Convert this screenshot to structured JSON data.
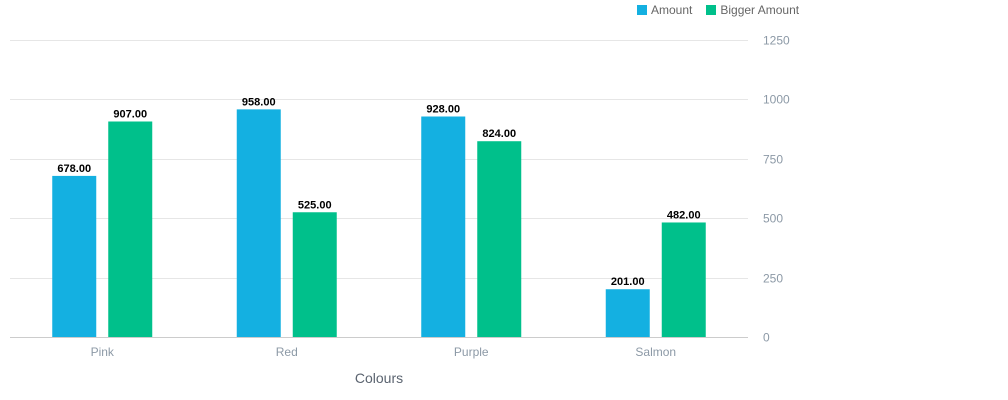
{
  "chart_data": {
    "type": "bar",
    "categories": [
      "Pink",
      "Red",
      "Purple",
      "Salmon"
    ],
    "series": [
      {
        "name": "Amount",
        "values": [
          678.0,
          958.0,
          928.0,
          201.0
        ],
        "color": "#14b0e1",
        "labels": [
          "678.00",
          "958.00",
          "928.00",
          "201.00"
        ]
      },
      {
        "name": "Bigger Amount",
        "values": [
          907.0,
          525.0,
          824.0,
          482.0
        ],
        "color": "#00c08b",
        "labels": [
          "907.00",
          "525.00",
          "824.00",
          "482.00"
        ]
      }
    ],
    "xlabel": "Colours",
    "ylabel": "",
    "ylim": [
      0,
      1250
    ],
    "yticks": [
      0,
      250,
      500,
      750,
      1000,
      1250
    ],
    "ytick_labels": [
      "0",
      "250",
      "500",
      "750",
      "1000",
      "1250"
    ],
    "y_axis_side": "right",
    "grid": true,
    "legend_position": "top-right"
  }
}
